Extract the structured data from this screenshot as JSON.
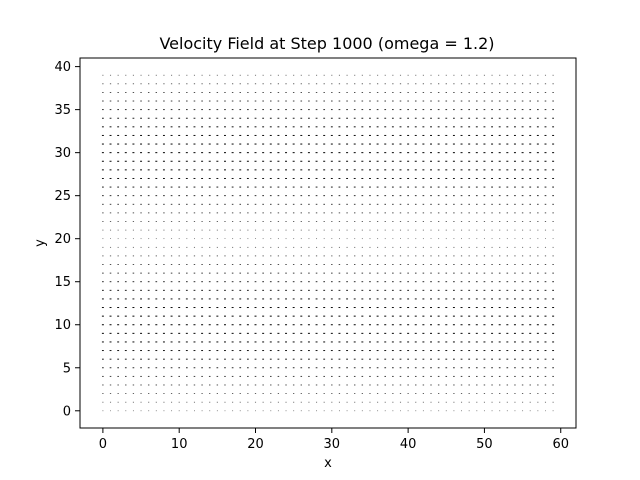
{
  "chart_data": {
    "type": "quiver",
    "title": "Velocity Field at Step 1000 (omega = 1.2)",
    "xlabel": "x",
    "ylabel": "y",
    "xlim": [
      -3,
      62
    ],
    "ylim": [
      -2,
      41
    ],
    "xticks": [
      0,
      10,
      20,
      30,
      40,
      50,
      60
    ],
    "yticks": [
      0,
      5,
      10,
      15,
      20,
      25,
      30,
      35,
      40
    ],
    "xtick_labels": [
      "0",
      "10",
      "20",
      "30",
      "40",
      "50",
      "60"
    ],
    "ytick_labels": [
      "0",
      "5",
      "10",
      "15",
      "20",
      "25",
      "30",
      "35",
      "40"
    ],
    "grid": false,
    "legend": false,
    "arrow_color": "#000000",
    "grid_points": {
      "x_start": 0,
      "x_end": 59,
      "x_step": 1,
      "y_start": 0,
      "y_end": 39,
      "y_step": 1
    },
    "velocity_profile": {
      "u_by_row_note": "horizontal velocity varies with y; strongest near y≈10 and y≈30, weakest near y≈0, y≈20 and y≈39",
      "u_amplitude": 1.0,
      "v": 0.0
    }
  }
}
